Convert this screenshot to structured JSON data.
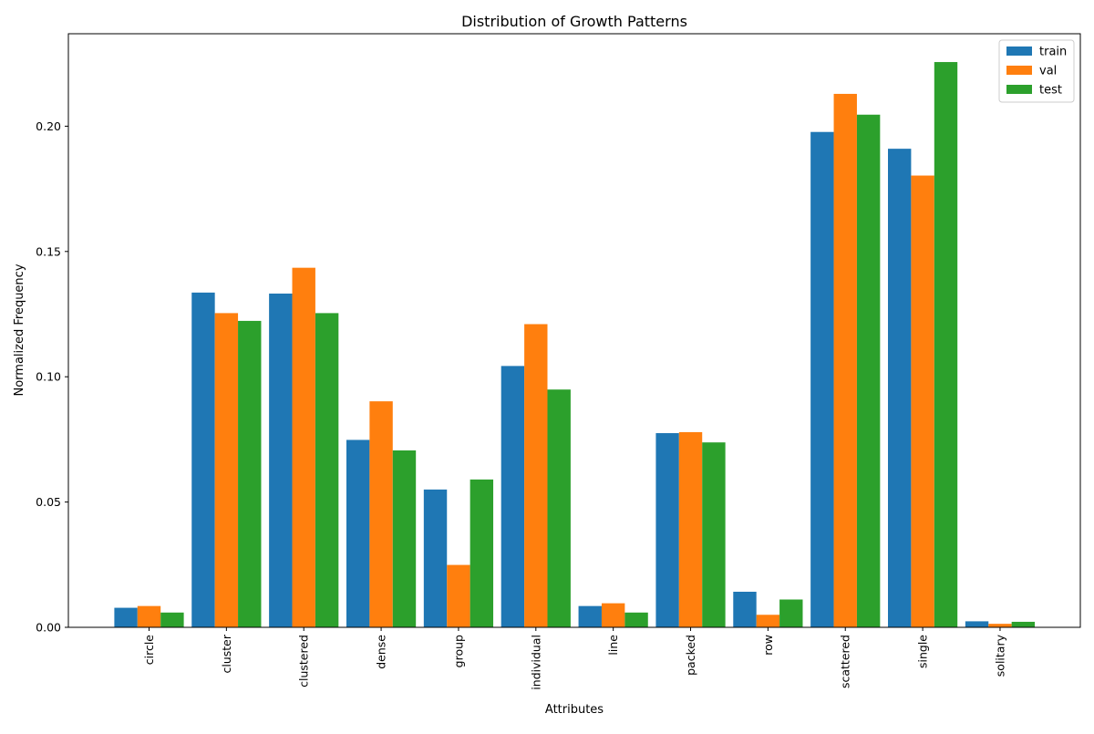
{
  "chart_data": {
    "type": "bar",
    "title": "Distribution of Growth Patterns",
    "xlabel": "Attributes",
    "ylabel": "Normalized Frequency",
    "categories": [
      "circle",
      "cluster",
      "clustered",
      "dense",
      "group",
      "individual",
      "line",
      "packed",
      "row",
      "scattered",
      "single",
      "solitary"
    ],
    "series": [
      {
        "name": "train",
        "color": "#1f77b4",
        "values": [
          0.0078,
          0.1336,
          0.1332,
          0.0748,
          0.055,
          0.1043,
          0.0085,
          0.0775,
          0.0142,
          0.1977,
          0.191,
          0.0024
        ]
      },
      {
        "name": "val",
        "color": "#ff7f0e",
        "values": [
          0.0085,
          0.1254,
          0.1435,
          0.0902,
          0.0249,
          0.121,
          0.0096,
          0.0779,
          0.005,
          0.2129,
          0.1803,
          0.0014
        ]
      },
      {
        "name": "test",
        "color": "#2ca02c",
        "values": [
          0.0059,
          0.1223,
          0.1254,
          0.0706,
          0.059,
          0.0949,
          0.0059,
          0.0738,
          0.0111,
          0.2046,
          0.2256,
          0.0022
        ]
      }
    ],
    "yticks": [
      "0.00",
      "0.05",
      "0.10",
      "0.15",
      "0.20"
    ],
    "ylim": [
      0,
      0.2369
    ],
    "grid": false,
    "legend_position": "top-right"
  }
}
